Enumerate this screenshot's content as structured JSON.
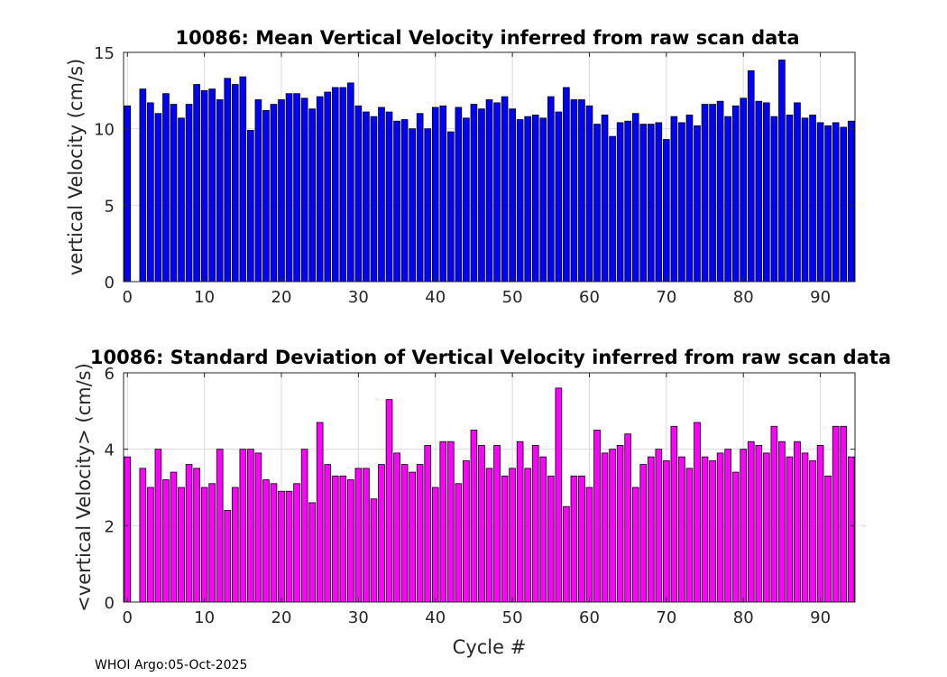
{
  "chart_data": [
    {
      "type": "bar",
      "title": "10086: Mean Vertical Velocity inferred from raw scan data",
      "xlabel": "",
      "ylabel": "vertical Velocity (cm/s)",
      "xlim": [
        -0.5,
        94.5
      ],
      "ylim": [
        0,
        15
      ],
      "xticks": [
        0,
        10,
        20,
        30,
        40,
        50,
        60,
        70,
        80,
        90
      ],
      "yticks": [
        0,
        5,
        10,
        15
      ],
      "grid": true,
      "color": "#0000ff",
      "x": [
        0,
        1,
        2,
        3,
        4,
        5,
        6,
        7,
        8,
        9,
        10,
        11,
        12,
        13,
        14,
        15,
        16,
        17,
        18,
        19,
        20,
        21,
        22,
        23,
        24,
        25,
        26,
        27,
        28,
        29,
        30,
        31,
        32,
        33,
        34,
        35,
        36,
        37,
        38,
        39,
        40,
        41,
        42,
        43,
        44,
        45,
        46,
        47,
        48,
        49,
        50,
        51,
        52,
        53,
        54,
        55,
        56,
        57,
        58,
        59,
        60,
        61,
        62,
        63,
        64,
        65,
        66,
        67,
        68,
        69,
        70,
        71,
        72,
        73,
        74,
        75,
        76,
        77,
        78,
        79,
        80,
        81,
        82,
        83,
        84,
        85,
        86,
        87,
        88,
        89,
        90,
        91,
        92,
        93,
        94
      ],
      "values": [
        11.5,
        0,
        12.6,
        11.7,
        11.0,
        12.3,
        11.6,
        10.7,
        11.6,
        12.9,
        12.5,
        12.6,
        11.9,
        13.3,
        12.9,
        13.4,
        9.9,
        11.9,
        11.2,
        11.6,
        11.9,
        12.3,
        12.3,
        12.0,
        11.3,
        12.1,
        12.4,
        12.7,
        12.7,
        13.0,
        11.5,
        11.1,
        10.8,
        11.4,
        11.1,
        10.5,
        10.6,
        10.0,
        11.0,
        10.0,
        11.4,
        11.5,
        9.8,
        11.4,
        10.7,
        11.6,
        11.3,
        11.9,
        11.7,
        12.1,
        11.3,
        10.6,
        10.8,
        10.9,
        10.7,
        12.1,
        11.1,
        12.7,
        11.9,
        11.9,
        11.5,
        10.3,
        10.9,
        9.5,
        10.4,
        10.5,
        11.0,
        10.3,
        10.3,
        10.4,
        9.3,
        10.8,
        10.4,
        10.9,
        10.2,
        11.6,
        11.6,
        11.8,
        10.8,
        11.5,
        12.0,
        13.8,
        11.8,
        11.7,
        10.8,
        14.5,
        10.9,
        11.7,
        10.7,
        10.9,
        10.4,
        10.2,
        10.4,
        10.1,
        10.5
      ]
    },
    {
      "type": "bar",
      "title": "10086: Standard Deviation of Vertical Velocity inferred from raw scan data",
      "xlabel": "Cycle #",
      "ylabel": "<vertical Velocity> (cm/s)",
      "xlim": [
        -0.5,
        94.5
      ],
      "ylim": [
        0,
        6
      ],
      "xticks": [
        0,
        10,
        20,
        30,
        40,
        50,
        60,
        70,
        80,
        90
      ],
      "yticks": [
        0,
        2,
        4,
        6
      ],
      "grid": true,
      "color": "#ff00ff",
      "x": [
        0,
        1,
        2,
        3,
        4,
        5,
        6,
        7,
        8,
        9,
        10,
        11,
        12,
        13,
        14,
        15,
        16,
        17,
        18,
        19,
        20,
        21,
        22,
        23,
        24,
        25,
        26,
        27,
        28,
        29,
        30,
        31,
        32,
        33,
        34,
        35,
        36,
        37,
        38,
        39,
        40,
        41,
        42,
        43,
        44,
        45,
        46,
        47,
        48,
        49,
        50,
        51,
        52,
        53,
        54,
        55,
        56,
        57,
        58,
        59,
        60,
        61,
        62,
        63,
        64,
        65,
        66,
        67,
        68,
        69,
        70,
        71,
        72,
        73,
        74,
        75,
        76,
        77,
        78,
        79,
        80,
        81,
        82,
        83,
        84,
        85,
        86,
        87,
        88,
        89,
        90,
        91,
        92,
        93,
        94
      ],
      "values": [
        3.8,
        0,
        3.5,
        3.0,
        4.0,
        3.2,
        3.4,
        3.0,
        3.6,
        3.5,
        3.0,
        3.1,
        4.0,
        2.4,
        3.0,
        4.0,
        4.0,
        3.9,
        3.2,
        3.1,
        2.9,
        2.9,
        3.1,
        4.0,
        2.6,
        4.7,
        3.6,
        3.3,
        3.3,
        3.2,
        3.5,
        3.5,
        2.7,
        3.6,
        5.3,
        3.9,
        3.6,
        3.4,
        3.6,
        4.1,
        3.0,
        4.2,
        4.2,
        3.1,
        3.7,
        4.5,
        4.1,
        3.5,
        4.1,
        3.3,
        3.5,
        4.2,
        3.5,
        4.1,
        3.8,
        3.3,
        5.6,
        2.5,
        3.3,
        3.3,
        3.0,
        4.5,
        3.9,
        4.0,
        4.1,
        4.4,
        3.0,
        3.6,
        3.8,
        4.0,
        3.7,
        4.6,
        3.8,
        3.5,
        4.7,
        3.8,
        3.7,
        3.9,
        4.0,
        3.4,
        4.0,
        4.2,
        4.1,
        3.9,
        4.6,
        4.2,
        3.8,
        4.2,
        3.9,
        3.7,
        4.1,
        3.3,
        4.6,
        4.6,
        3.8
      ]
    }
  ],
  "footer": "WHOI Argo:05-Oct-2025"
}
